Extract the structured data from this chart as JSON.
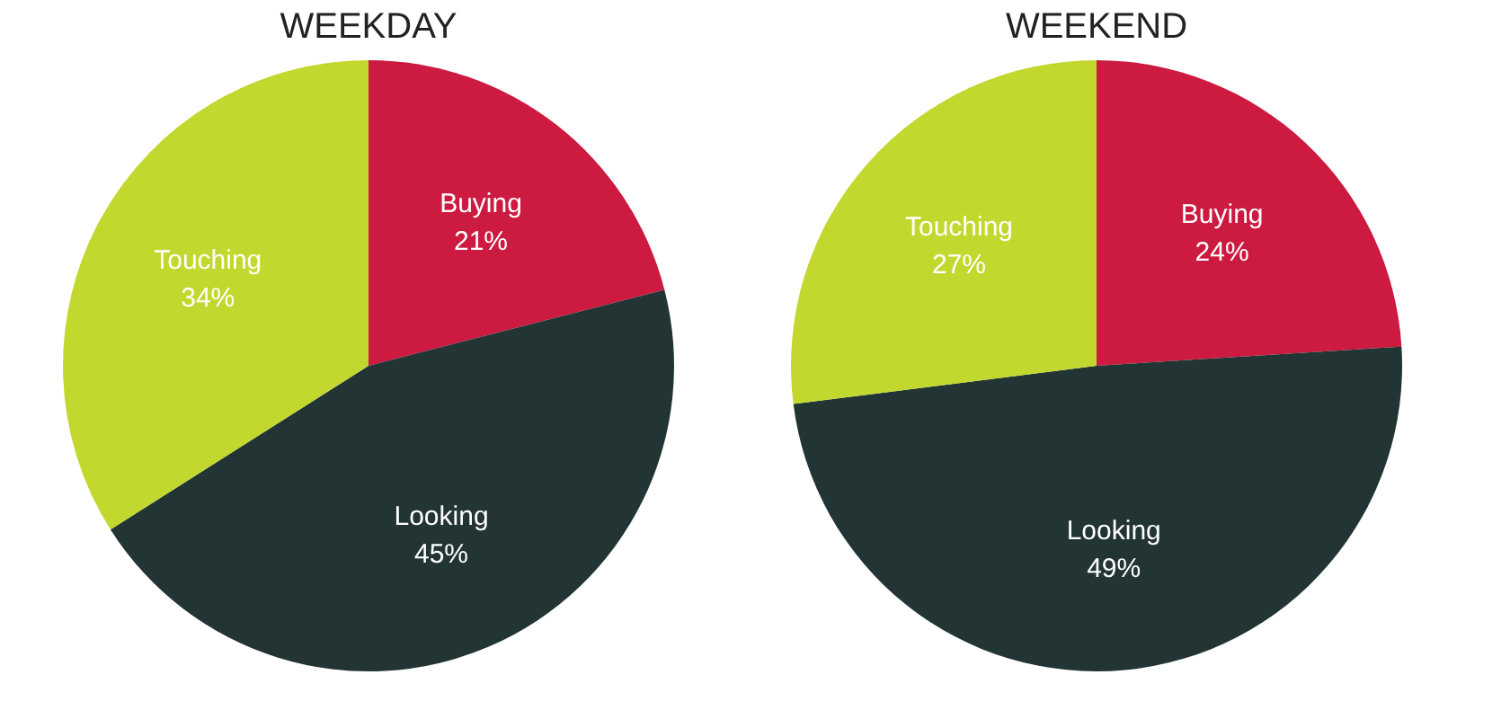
{
  "chart_data": [
    {
      "type": "pie",
      "title": "WEEKDAY",
      "categories": [
        "Buying",
        "Looking",
        "Touching"
      ],
      "values": [
        21,
        45,
        34
      ],
      "colors": [
        "#cc1a40",
        "#223434",
        "#c2d82f"
      ],
      "value_labels": [
        "21%",
        "45%",
        "34%"
      ],
      "legend": false
    },
    {
      "type": "pie",
      "title": "WEEKEND",
      "categories": [
        "Buying",
        "Looking",
        "Touching"
      ],
      "values": [
        24,
        49,
        27
      ],
      "colors": [
        "#cc1a40",
        "#223434",
        "#c2d82f"
      ],
      "value_labels": [
        "24%",
        "49%",
        "27%"
      ],
      "legend": false
    }
  ]
}
